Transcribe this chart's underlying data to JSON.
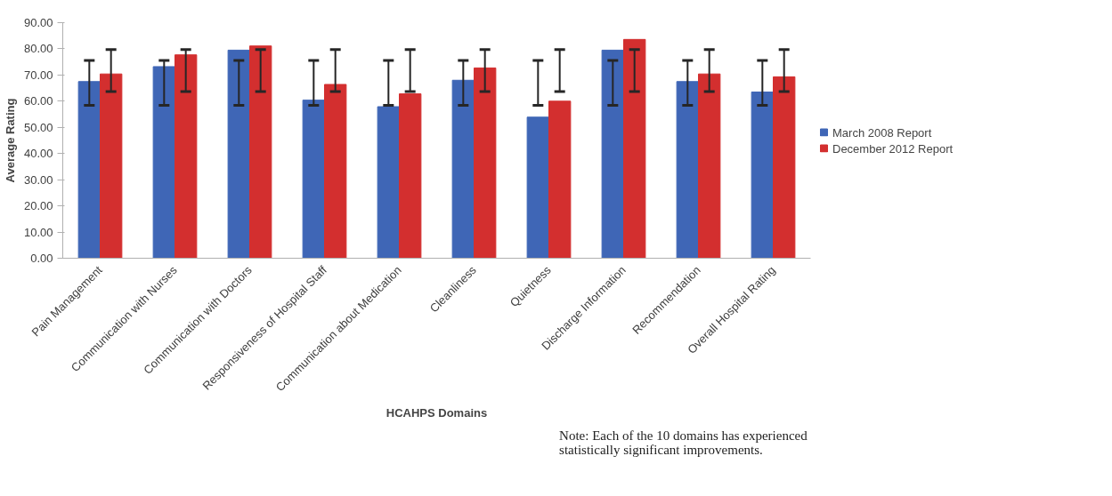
{
  "chart_data": {
    "type": "bar",
    "xlabel": "HCAHPS Domains",
    "ylabel": "Average Rating",
    "categories": [
      "Pain Management",
      "Communication with Nurses",
      "Communication with Doctors",
      "Responsiveness of Hospital Staff",
      "Communication about Medication",
      "Cleanliness",
      "Quietness",
      "Discharge Information",
      "Recommendation",
      "Overall Hospital Rating"
    ],
    "series": [
      {
        "name": "March 2008 Report",
        "color": "#3f66b6",
        "values": [
          67.5,
          73.2,
          79.5,
          60.4,
          57.9,
          68.0,
          53.9,
          79.5,
          67.5,
          63.5
        ],
        "errors": [
          [
            58.4,
            75.6
          ],
          [
            58.4,
            75.6
          ],
          [
            58.4,
            75.6
          ],
          [
            58.4,
            75.6
          ],
          [
            58.4,
            75.6
          ],
          [
            58.4,
            75.6
          ],
          [
            58.4,
            75.6
          ],
          [
            58.4,
            75.6
          ],
          [
            58.4,
            75.6
          ],
          [
            58.4,
            75.6
          ]
        ]
      },
      {
        "name": "December 2012 Report",
        "color": "#d32f2f",
        "values": [
          70.4,
          77.7,
          81.1,
          66.4,
          62.8,
          72.7,
          60.0,
          83.6,
          70.4,
          69.3
        ],
        "errors": [
          [
            63.7,
            79.7
          ],
          [
            63.7,
            79.7
          ],
          [
            63.7,
            79.7
          ],
          [
            63.7,
            79.7
          ],
          [
            63.7,
            79.7
          ],
          [
            63.7,
            79.7
          ],
          [
            63.7,
            79.7
          ],
          [
            63.7,
            79.7
          ],
          [
            63.7,
            79.7
          ],
          [
            63.7,
            79.7
          ]
        ]
      }
    ],
    "ylim": [
      0,
      90
    ],
    "yticks": [
      {
        "value": 0,
        "label": "0.00"
      },
      {
        "value": 10,
        "label": "10.00"
      },
      {
        "value": 20,
        "label": "20.00"
      },
      {
        "value": 30,
        "label": "30.00"
      },
      {
        "value": 40,
        "label": "40.00"
      },
      {
        "value": 50,
        "label": "50.00"
      },
      {
        "value": 60,
        "label": "60.00"
      },
      {
        "value": 70,
        "label": "70.00"
      },
      {
        "value": 80,
        "label": "80.00"
      },
      {
        "value": 90,
        "label": "90.00"
      }
    ],
    "grid": false,
    "legend": "right",
    "annotations": [
      "Note:  Each of the 10 domains has experienced statistically significant improvements."
    ]
  }
}
